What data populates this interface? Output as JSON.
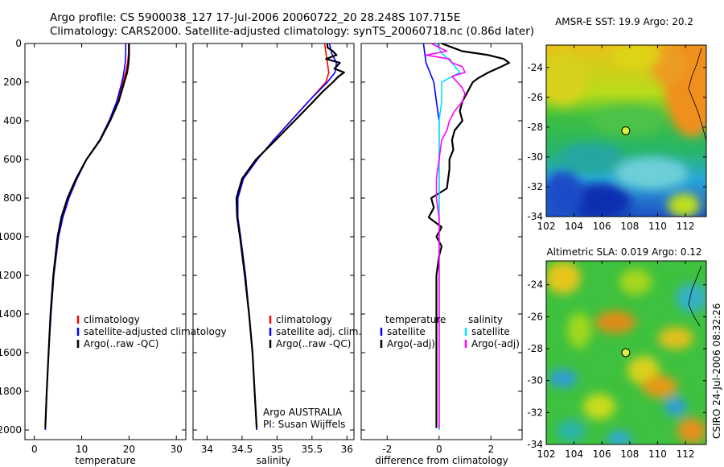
{
  "header": {
    "line1": "Argo profile: CS 5900038_127 17-Jul-2006 20060722_20 28.248S 107.715E",
    "line2": "Climatology: CARS2000. Satellite-adjusted climatology: synTS_20060718.nc (0.86d later)"
  },
  "colors": {
    "red": "#ff0000",
    "blue": "#0000ff",
    "black": "#000000",
    "cyan": "#00e5ff",
    "magenta": "#ff00ff"
  },
  "chart_data": [
    {
      "type": "line",
      "xlabel": "temperature",
      "ylabel": "",
      "xlim": [
        -2,
        32
      ],
      "ylim": [
        2050,
        0
      ],
      "xticks": [
        0,
        10,
        20,
        30
      ],
      "yticks": [
        0,
        200,
        400,
        600,
        800,
        1000,
        1200,
        1400,
        1600,
        1800,
        2000
      ],
      "legend": [
        "climatology",
        "satellite-adjusted climatology",
        "Argo(..raw -QC)"
      ],
      "series": [
        {
          "name": "climatology",
          "color": "red",
          "depth": [
            0,
            50,
            100,
            150,
            200,
            300,
            400,
            500,
            600,
            700,
            800,
            900,
            1000,
            1200,
            1400,
            1600,
            1800,
            2000
          ],
          "x": [
            19.9,
            19.9,
            19.7,
            19.3,
            18.7,
            17.5,
            15.8,
            13.8,
            11.0,
            9.0,
            7.3,
            6.0,
            5.1,
            4.1,
            3.5,
            3.0,
            2.6,
            2.3
          ]
        },
        {
          "name": "satellite-adjusted climatology",
          "color": "blue",
          "depth": [
            0,
            50,
            100,
            150,
            200,
            300,
            400,
            500,
            600,
            700,
            800,
            900,
            1000,
            1200,
            1400,
            1600,
            1800,
            2000
          ],
          "x": [
            19.3,
            19.3,
            19.2,
            18.9,
            18.5,
            17.4,
            15.8,
            13.8,
            11.0,
            9.0,
            7.3,
            6.0,
            5.1,
            4.1,
            3.5,
            3.0,
            2.6,
            2.3
          ]
        },
        {
          "name": "Argo(..raw -QC)",
          "color": "black",
          "depth": [
            0,
            30,
            60,
            100,
            150,
            200,
            300,
            400,
            500,
            600,
            700,
            800,
            900,
            1000,
            1200,
            1400,
            1600,
            1800,
            1990
          ],
          "x": [
            20.0,
            20.0,
            20.0,
            19.9,
            19.6,
            19.0,
            17.8,
            16.0,
            13.9,
            11.0,
            8.8,
            7.0,
            5.7,
            4.9,
            4.0,
            3.4,
            3.0,
            2.6,
            2.3
          ]
        }
      ]
    },
    {
      "type": "line",
      "xlabel": "salinity",
      "ylabel": "",
      "xlim": [
        33.8,
        36.1
      ],
      "ylim": [
        2050,
        0
      ],
      "xticks": [
        34,
        34.5,
        35,
        35.5,
        36
      ],
      "yticks": [
        0,
        200,
        400,
        600,
        800,
        1000,
        1200,
        1400,
        1600,
        1800,
        2000
      ],
      "legend": [
        "climatology",
        "satellite adj. clim.",
        "Argo(..raw -QC)"
      ],
      "annotations": [
        "Argo AUSTRALIA",
        "PI: Susan Wijffels"
      ],
      "series": [
        {
          "name": "climatology",
          "color": "red",
          "depth": [
            0,
            50,
            100,
            150,
            200,
            300,
            400,
            500,
            600,
            700,
            800,
            900,
            1000,
            1200,
            1400,
            1600,
            1800,
            2000
          ],
          "x": [
            35.68,
            35.7,
            35.72,
            35.74,
            35.7,
            35.45,
            35.2,
            34.95,
            34.72,
            34.52,
            34.44,
            34.44,
            34.48,
            34.55,
            34.6,
            34.65,
            34.68,
            34.71
          ]
        },
        {
          "name": "satellite adj. clim.",
          "color": "blue",
          "depth": [
            0,
            50,
            100,
            150,
            200,
            300,
            400,
            500,
            600,
            700,
            800,
            900,
            1000,
            1200,
            1400,
            1600,
            1800,
            2000
          ],
          "x": [
            35.75,
            35.78,
            35.85,
            35.83,
            35.72,
            35.45,
            35.2,
            34.95,
            34.72,
            34.52,
            34.44,
            34.44,
            34.48,
            34.55,
            34.6,
            34.65,
            34.68,
            34.71
          ]
        },
        {
          "name": "Argo(..raw -QC)",
          "color": "black",
          "depth": [
            0,
            20,
            40,
            60,
            80,
            100,
            130,
            150,
            170,
            200,
            250,
            300,
            400,
            500,
            600,
            700,
            800,
            900,
            1000,
            1200,
            1400,
            1600,
            1800,
            1990
          ],
          "x": [
            35.72,
            35.72,
            35.8,
            35.85,
            35.7,
            35.9,
            35.82,
            35.96,
            35.88,
            35.8,
            35.65,
            35.52,
            35.25,
            34.98,
            34.7,
            34.5,
            34.42,
            34.43,
            34.47,
            34.54,
            34.6,
            34.65,
            34.68,
            34.71
          ]
        }
      ]
    },
    {
      "type": "line",
      "xlabel": "difference from climatology",
      "ylabel": "",
      "xlim": [
        -3,
        3.2
      ],
      "ylim": [
        2050,
        0
      ],
      "xticks": [
        -2,
        0,
        2
      ],
      "yticks": [
        0,
        200,
        400,
        600,
        800,
        1000,
        1200,
        1400,
        1600,
        1800,
        2000
      ],
      "legend": {
        "temperature": [
          "satellite",
          "Argo(-adj)"
        ],
        "salinity": [
          "satellite",
          "Argo(-adj)"
        ]
      },
      "legend_headers": [
        "temperature",
        "salinity"
      ],
      "series": [
        {
          "name": "satellite",
          "group": "temperature",
          "color": "blue",
          "depth": [
            0,
            100,
            200,
            300,
            400,
            600,
            800,
            1000,
            1200,
            2000
          ],
          "x": [
            -0.6,
            -0.5,
            -0.2,
            -0.1,
            0.0,
            0.0,
            0.0,
            0.0,
            0.0,
            0.0
          ]
        },
        {
          "name": "Argo(-adj)",
          "group": "temperature",
          "color": "black",
          "depth": [
            0,
            20,
            40,
            60,
            80,
            100,
            120,
            150,
            180,
            200,
            250,
            300,
            350,
            400,
            450,
            500,
            550,
            600,
            650,
            700,
            750,
            800,
            850,
            900,
            950,
            1000,
            1050,
            1100,
            1200,
            1400,
            1600,
            1800,
            1990
          ],
          "x": [
            0.1,
            0.5,
            0.9,
            1.9,
            2.5,
            2.7,
            2.4,
            1.9,
            1.5,
            1.3,
            1.1,
            0.9,
            0.8,
            0.9,
            0.6,
            0.5,
            0.55,
            0.4,
            0.4,
            0.35,
            0.3,
            -0.3,
            -0.2,
            -0.4,
            0.1,
            -0.1,
            0.1,
            0.0,
            -0.1,
            -0.1,
            -0.1,
            -0.1,
            -0.1
          ]
        },
        {
          "name": "satellite",
          "group": "salinity",
          "color": "cyan",
          "depth": [
            0,
            50,
            100,
            150,
            200,
            300,
            400,
            600,
            800,
            1000,
            1200,
            2000
          ],
          "x": [
            -0.1,
            0.1,
            0.5,
            0.8,
            0.1,
            0.1,
            0.0,
            0.0,
            0.0,
            0.0,
            0.0,
            0.0
          ]
        },
        {
          "name": "Argo(-adj)",
          "group": "salinity",
          "color": "magenta",
          "depth": [
            0,
            20,
            40,
            60,
            80,
            100,
            120,
            150,
            170,
            200,
            230,
            260,
            300,
            350,
            400,
            450,
            500,
            600,
            700,
            800,
            900,
            1000,
            1200,
            1400,
            1600,
            1800,
            1990
          ],
          "x": [
            -0.3,
            0.0,
            0.3,
            -0.5,
            0.4,
            0.5,
            0.9,
            1.0,
            0.5,
            0.7,
            0.9,
            1.0,
            0.9,
            0.6,
            0.4,
            0.3,
            0.1,
            0.0,
            -0.1,
            -0.1,
            0.0,
            0.0,
            0.0,
            0.0,
            0.0,
            0.0,
            0.0
          ]
        }
      ]
    },
    {
      "type": "heatmap",
      "title": "AMSR-E SST: 19.9 Argo: 20.2",
      "xlim": [
        102,
        113.5
      ],
      "ylim": [
        -34,
        -22.5
      ],
      "xticks": [
        102,
        104,
        106,
        108,
        110,
        112
      ],
      "yticks": [
        -24,
        -26,
        -28,
        -30,
        -32,
        -34
      ],
      "marker": {
        "lon": 107.715,
        "lat": -28.248
      }
    },
    {
      "type": "heatmap",
      "title": "Altimetric SLA: 0.019 Argo: 0.12",
      "xlim": [
        102,
        113.5
      ],
      "ylim": [
        -34,
        -22.5
      ],
      "xticks": [
        102,
        104,
        106,
        108,
        110,
        112
      ],
      "yticks": [
        -24,
        -26,
        -28,
        -30,
        -32,
        -34
      ],
      "marker": {
        "lon": 107.715,
        "lat": -28.248
      }
    }
  ],
  "footer": {
    "stamp": "CSIRO 24-Jul-2006 08:32:26"
  }
}
